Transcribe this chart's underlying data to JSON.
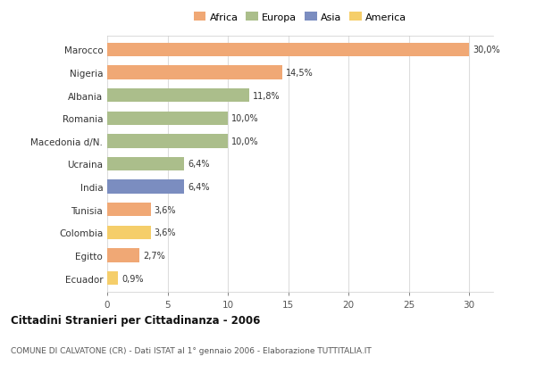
{
  "categories": [
    "Marocco",
    "Nigeria",
    "Albania",
    "Romania",
    "Macedonia d/N.",
    "Ucraina",
    "India",
    "Tunisia",
    "Colombia",
    "Egitto",
    "Ecuador"
  ],
  "values": [
    30.0,
    14.5,
    11.8,
    10.0,
    10.0,
    6.4,
    6.4,
    3.6,
    3.6,
    2.7,
    0.9
  ],
  "labels": [
    "30,0%",
    "14,5%",
    "11,8%",
    "10,0%",
    "10,0%",
    "6,4%",
    "6,4%",
    "3,6%",
    "3,6%",
    "2,7%",
    "0,9%"
  ],
  "colors": [
    "#F0A875",
    "#F0A875",
    "#ABBE8B",
    "#ABBE8B",
    "#ABBE8B",
    "#ABBE8B",
    "#7B8DC0",
    "#F0A875",
    "#F5CE6A",
    "#F0A875",
    "#F5CE6A"
  ],
  "legend_labels": [
    "Africa",
    "Europa",
    "Asia",
    "America"
  ],
  "legend_colors": [
    "#F0A875",
    "#ABBE8B",
    "#7B8DC0",
    "#F5CE6A"
  ],
  "title": "Cittadini Stranieri per Cittadinanza - 2006",
  "subtitle": "COMUNE DI CALVATONE (CR) - Dati ISTAT al 1° gennaio 2006 - Elaborazione TUTTITALIA.IT",
  "xlim": [
    0,
    32
  ],
  "xticks": [
    0,
    5,
    10,
    15,
    20,
    25,
    30
  ],
  "background_color": "#FFFFFF",
  "grid_color": "#DDDDDD",
  "bar_height": 0.6
}
